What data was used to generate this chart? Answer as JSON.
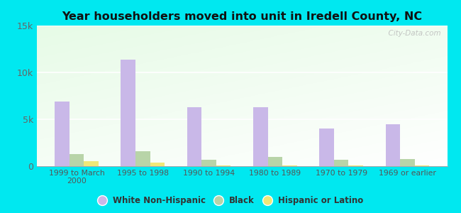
{
  "title": "Year householders moved into unit in Iredell County, NC",
  "categories": [
    "1999 to March\n2000",
    "1995 to 1998",
    "1990 to 1994",
    "1980 to 1989",
    "1970 to 1979",
    "1969 or earlier"
  ],
  "white_non_hispanic": [
    6900,
    11400,
    6300,
    6300,
    4000,
    4500
  ],
  "black": [
    1300,
    1600,
    700,
    1000,
    700,
    750
  ],
  "hispanic_or_latino": [
    500,
    350,
    100,
    50,
    50,
    50
  ],
  "bar_colors": {
    "white": "#c9b8e8",
    "black": "#b8d4a8",
    "hispanic": "#f0e878"
  },
  "background_outer": "#00e8f0",
  "ylim": [
    0,
    15000
  ],
  "yticks": [
    0,
    5000,
    10000,
    15000
  ],
  "ytick_labels": [
    "0",
    "5k",
    "10k",
    "15k"
  ],
  "watermark": "  City-Data.com"
}
